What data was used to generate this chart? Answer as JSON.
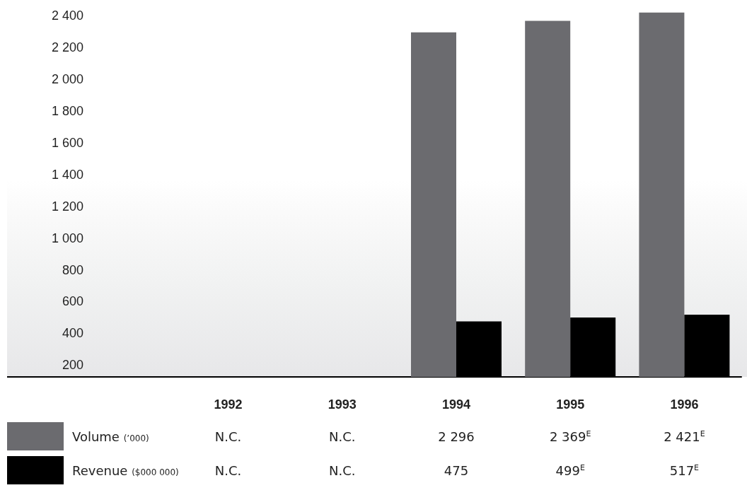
{
  "chart_data": {
    "type": "bar",
    "categories": [
      "1992",
      "1993",
      "1994",
      "1995",
      "1996"
    ],
    "series": [
      {
        "name": "Volume (’000)",
        "color": "#6b6b6f",
        "values": [
          null,
          null,
          2296,
          2369,
          2421
        ],
        "value_labels": [
          "N.C.",
          "N.C.",
          "2 296",
          "2 369$^{E}$",
          "2 421$^{E}$"
        ]
      },
      {
        "name": "Revenue ($000 000)",
        "color": "#000000",
        "values": [
          null,
          null,
          475,
          499,
          517
        ],
        "value_labels": [
          "N.C.",
          "N.C.",
          "475",
          "499$^{E}$",
          "517$^{E}$"
        ]
      }
    ],
    "ylim": [
      125,
      2500
    ],
    "yticks": [
      200,
      400,
      600,
      800,
      {
        "value": 1000,
        "label": "1 000"
      },
      {
        "value": 1200,
        "label": "1 200"
      },
      {
        "value": 1400,
        "label": "1 400"
      },
      {
        "value": 1600,
        "label": "1 600"
      },
      {
        "value": 1800,
        "label": "1 800"
      },
      {
        "value": 2000,
        "label": "2 000"
      },
      {
        "value": 2200,
        "label": "2 200"
      },
      {
        "value": 2400,
        "label": "2 400"
      }
    ],
    "grid": false,
    "legend": "bottom"
  }
}
